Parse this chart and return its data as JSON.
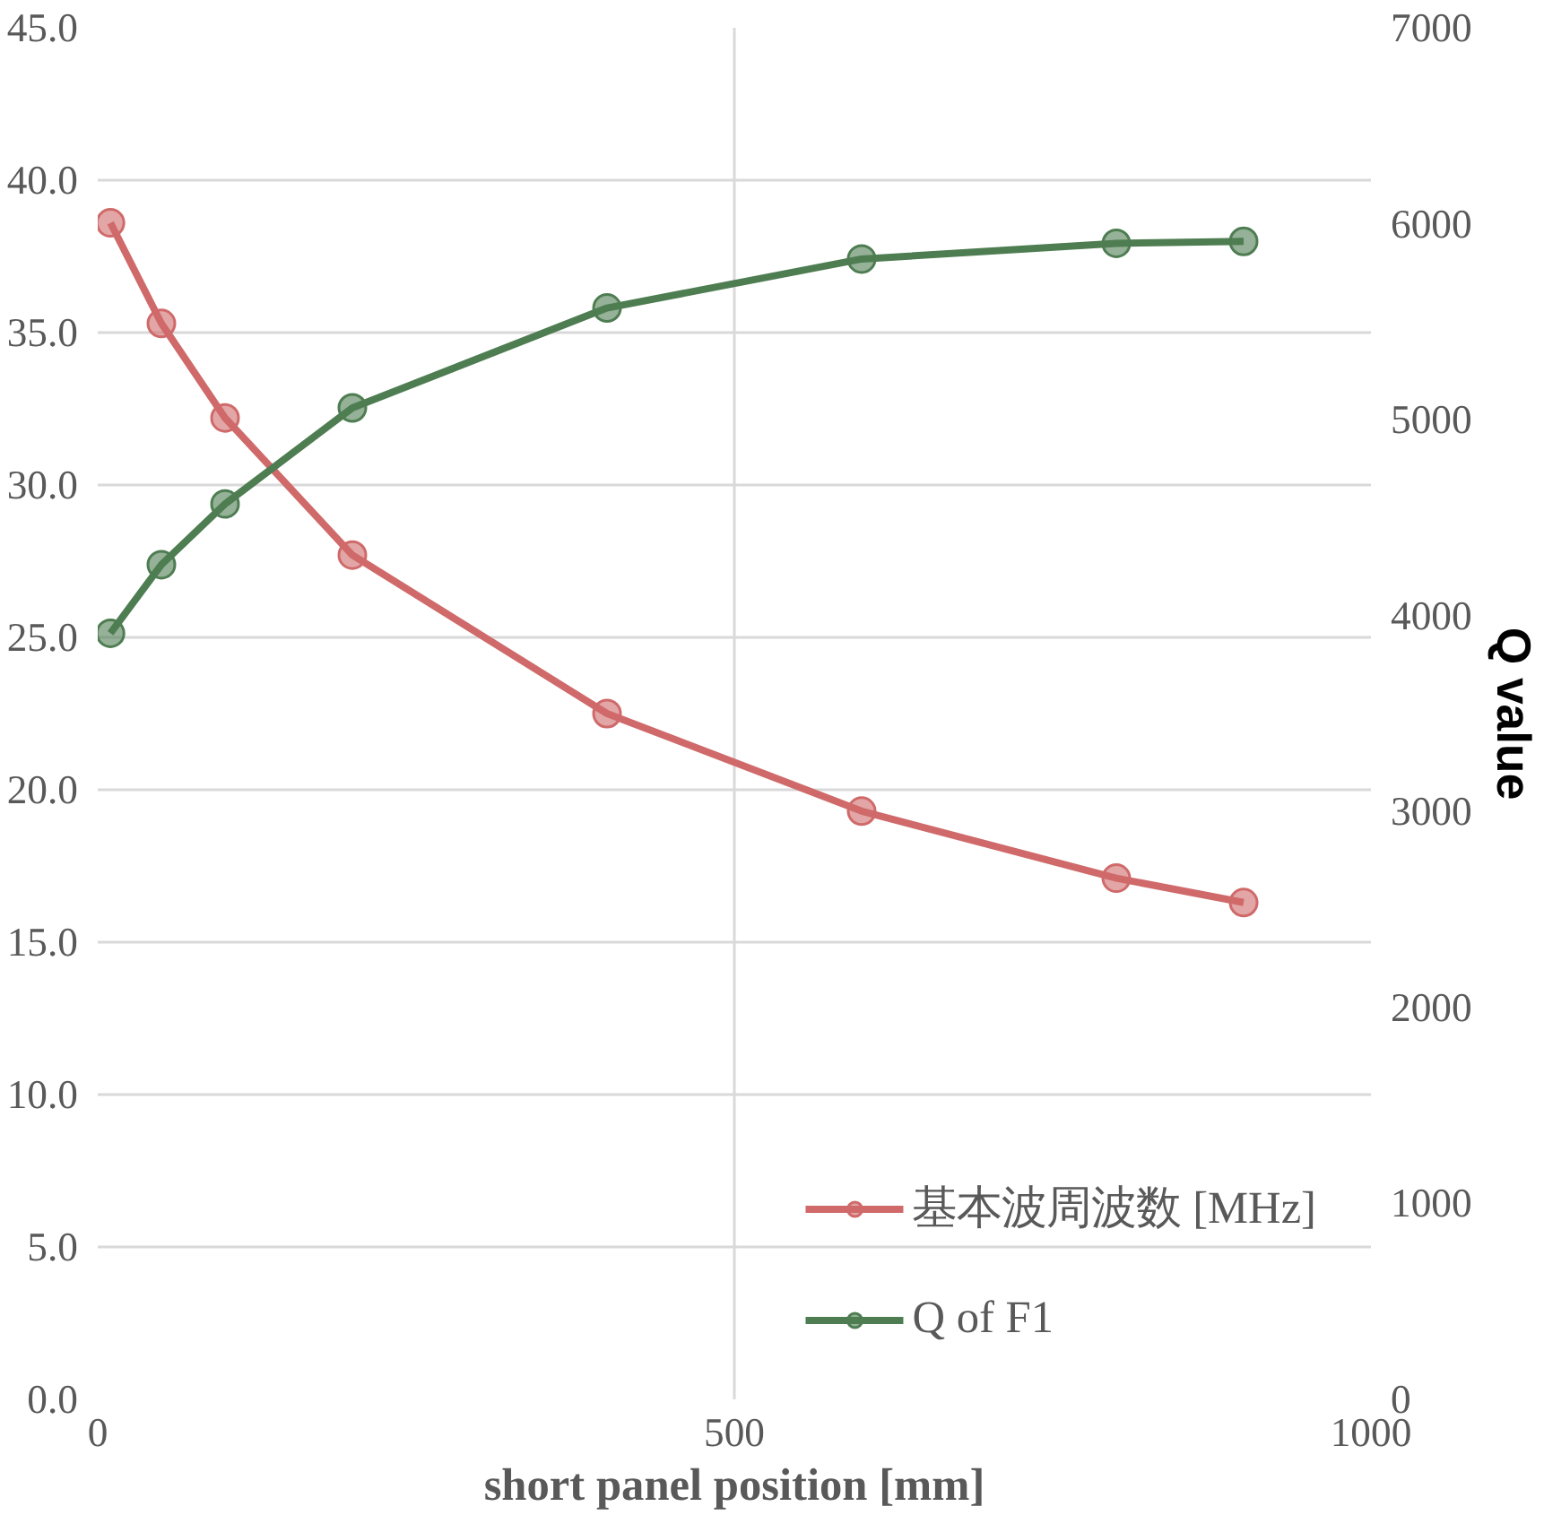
{
  "chart_data": {
    "type": "line",
    "xlabel": "short panel position [mm]",
    "y2label": "Q value",
    "xlim": [
      0,
      1000
    ],
    "xticks": [
      0,
      500,
      1000
    ],
    "ylim": [
      0,
      45
    ],
    "yticks": [
      {
        "value": 0,
        "label": "0.0"
      },
      {
        "value": 5,
        "label": "5.0"
      },
      {
        "value": 10,
        "label": "10.0"
      },
      {
        "value": 15,
        "label": "15.0"
      },
      {
        "value": 20,
        "label": "20.0"
      },
      {
        "value": 25,
        "label": "25.0"
      },
      {
        "value": 30,
        "label": "30.0"
      },
      {
        "value": 35,
        "label": "35.0"
      },
      {
        "value": 40,
        "label": "40.0"
      },
      {
        "value": 45,
        "label": "45.0"
      }
    ],
    "y2lim": [
      0,
      7000
    ],
    "y2ticks": [
      0,
      1000,
      2000,
      3000,
      4000,
      5000,
      6000,
      7000
    ],
    "x": [
      10,
      50,
      100,
      200,
      400,
      600,
      800,
      900
    ],
    "series": [
      {
        "name": "基本波周波数 [MHz]",
        "color": "#d06a6a",
        "values": [
          38.6,
          35.3,
          32.2,
          27.7,
          22.5,
          19.3,
          17.1,
          16.3
        ]
      },
      {
        "name": "Q of F1",
        "color": "#4e7d52",
        "axis": "y2",
        "values": [
          3910,
          4260,
          4570,
          5060,
          5570,
          5820,
          5900,
          5910
        ]
      }
    ],
    "grid": true,
    "legend": "bottom right",
    "marker": "circle",
    "line_style": "solid"
  }
}
